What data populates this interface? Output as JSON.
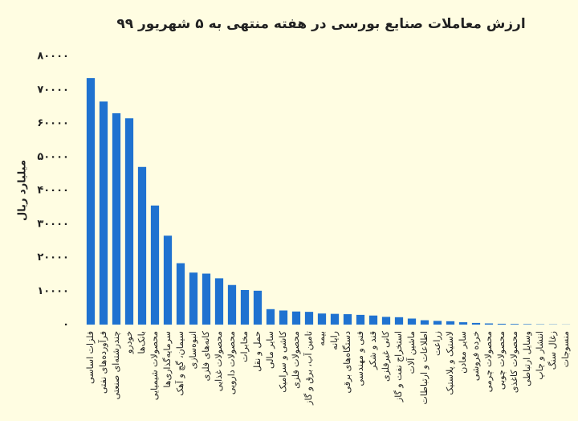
{
  "chart_data": {
    "type": "bar",
    "title": "ارزش معاملات صنایع بورسی در هفته منتهی به ۵ شهریور ۹۹",
    "y_label": "میلیارد ریال",
    "color": "#1f72d0",
    "categories": [
      "فلزات اساسی",
      "فرآورده‌های نفتی",
      "چندرشته‌ای صنعتی",
      "خودرو",
      "بانک‌ها",
      "محصولات شیمیایی",
      "سرمایه‌گذاری‌ها",
      "سیمان، گچ و آهک",
      "انبوه‌سازی",
      "کانه‌های فلزی",
      "محصولات غذایی",
      "محصولات دارویی",
      "مخابرات",
      "حمل و نقل",
      "سایر مالی",
      "کاشی و سرامیک",
      "محصولات فلزی",
      "تامین آب، برق و گاز",
      "بیمه",
      "رایانه",
      "دستگاه‌های برقی",
      "فنی و مهندسی",
      "قند و شکر",
      "کانی غیرفلزی",
      "استخراج نفت و گاز",
      "ماشین آلات",
      "اطلاعات و ارتباطات",
      "زراعت",
      "لاستیک و پلاستیک",
      "سایر معادن",
      "خرده فروشی",
      "محصولات چرمی",
      "محصولات چوبی",
      "محصولات کاغذی",
      "وسایل ارتباطی",
      "انتشار و چاپ",
      "زغال سنگ",
      "منسوجات"
    ],
    "values": [
      73500,
      66500,
      63000,
      61500,
      47000,
      35500,
      26500,
      18300,
      15500,
      15200,
      13800,
      11800,
      10300,
      10100,
      4600,
      4200,
      3900,
      3800,
      3300,
      3200,
      3100,
      2900,
      2700,
      2300,
      2200,
      1800,
      1300,
      1100,
      1000,
      700,
      500,
      350,
      250,
      200,
      150,
      100,
      80,
      50
    ],
    "ylim": [
      0,
      80000
    ],
    "yticks": [
      {
        "value": 0,
        "label": "۰"
      },
      {
        "value": 10000,
        "label": "۱۰۰۰۰"
      },
      {
        "value": 20000,
        "label": "۲۰۰۰۰"
      },
      {
        "value": 30000,
        "label": "۳۰۰۰۰"
      },
      {
        "value": 40000,
        "label": "۴۰۰۰۰"
      },
      {
        "value": 50000,
        "label": "۵۰۰۰۰"
      },
      {
        "value": 60000,
        "label": "۶۰۰۰۰"
      },
      {
        "value": 70000,
        "label": "۷۰۰۰۰"
      },
      {
        "value": 80000,
        "label": "۸۰۰۰۰"
      }
    ],
    "grid": false
  }
}
